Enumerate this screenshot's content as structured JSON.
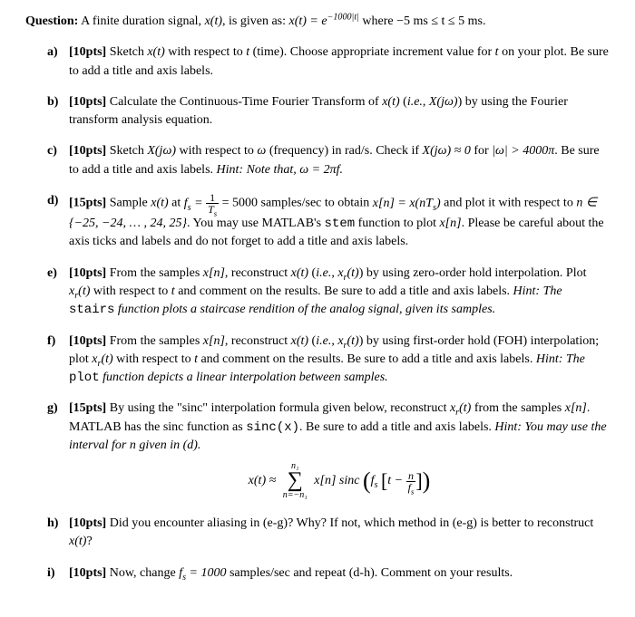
{
  "question": {
    "label": "Question:",
    "text_before": " A finite duration signal, ",
    "sig": "x(t)",
    "text_mid1": ", is given as: ",
    "eq_lhs": "x(t) = e",
    "eq_exp": "−1000|t|",
    "text_mid2": " where ",
    "range": "−5 ms ≤ t ≤ 5 ms.",
    "text_after": ""
  },
  "parts": {
    "a": {
      "label": "a)",
      "pts": "[10pts]",
      "body1": " Sketch ",
      "m1": "x(t)",
      "body2": " with respect to ",
      "m2": "t",
      "body3": " (time). Choose appropriate increment value for ",
      "m3": "t",
      "body4": " on your plot. Be sure to add a title and axis labels."
    },
    "b": {
      "label": "b)",
      "pts": "[10pts]",
      "body1": " Calculate the Continuous-Time Fourier Transform of ",
      "m1": "x(t)",
      "body2": " (",
      "m_ie": "i.e.",
      "body2b": ", ",
      "m2": "X(jω)",
      "body3": ") by using the Fourier transform analysis equation."
    },
    "c": {
      "label": "c)",
      "pts": "[10pts]",
      "body1": " Sketch ",
      "m1": "X(jω)",
      "body2": " with respect to ",
      "m2": "ω",
      "body3": " (frequency) in rad/s. Check if ",
      "m3": "X(jω) ≈ 0",
      "body4": " for ",
      "m4": "|ω| > 4000π",
      "body5": ". Be sure to add a title and axis labels. ",
      "hint_label": "Hint: Note that, ",
      "hint_math": "ω = 2πf",
      "hint_end": "."
    },
    "d": {
      "label": "d)",
      "pts": "[15pts]",
      "body1": " Sample ",
      "m1": "x(t)",
      "body2": " at ",
      "m2_lhs": "f",
      "m2_sub": "s",
      "m2_eq": " = ",
      "frac_num": "1",
      "frac_den": "T",
      "frac_den_sub": "s",
      "m2_val": " = 5000",
      "body3": " samples/sec to obtain ",
      "m3": "x[n] = x(nT",
      "m3_sub": "s",
      "m3_end": ")",
      "body4": " and plot it with respect to ",
      "m4": "n ∈ {−25, −24, … , 24, 25}",
      "body5": ". You may use MATLAB's ",
      "code1": "stem",
      "body6": " function to plot ",
      "m5": "x[n]",
      "body7": ". Please be careful about the axis ticks and labels and do not forget to add a title and axis labels."
    },
    "e": {
      "label": "e)",
      "pts": "[10pts]",
      "body1": " From the samples ",
      "m1": "x[n]",
      "body2": ", reconstruct ",
      "m2": "x(t)",
      "body3": " (",
      "m_ie": "i.e.",
      "body3b": ", ",
      "m3": "x",
      "m3_sub": "r",
      "m3_end": "(t)",
      "body4": ") by using zero-order hold interpolation. Plot ",
      "m4": "x",
      "m4_sub": "r",
      "m4_end": "(t)",
      "body5": " with respect to ",
      "m5": "t",
      "body6": " and comment on the results. Be sure to add a title and axis labels. ",
      "hint_label": "Hint: The ",
      "hint_code": "stairs",
      "hint_body": " function plots a staircase rendition of the analog signal, given its samples."
    },
    "f": {
      "label": "f)",
      "pts": "[10pts]",
      "body1": " From the samples ",
      "m1": "x[n]",
      "body2": ", reconstruct ",
      "m2": "x(t)",
      "body3": " (",
      "m_ie": "i.e.",
      "body3b": ", ",
      "m3": "x",
      "m3_sub": "r",
      "m3_end": "(t)",
      "body4": ") by using first-order hold (FOH) interpolation; plot ",
      "m4": "x",
      "m4_sub": "r",
      "m4_end": "(t)",
      "body5": " with respect to ",
      "m5": "t",
      "body6": " and comment on the results. Be sure to add a title and axis labels. ",
      "hint_label": "Hint: The ",
      "hint_code": "plot",
      "hint_body": " function depicts a linear interpolation between samples."
    },
    "g": {
      "label": "g)",
      "pts": "[15pts]",
      "body1": " By using the \"sinc\" interpolation formula given below, reconstruct ",
      "m1": "x",
      "m1_sub": "r",
      "m1_end": "(t)",
      "body2": " from the samples ",
      "m2": "x[n]",
      "body3": ". MATLAB has the sinc function as ",
      "code1": "sinc(x)",
      "body4": ". Be sure to add a title and axis labels. ",
      "hint_label": "Hint: You may use the interval for n given in (d).",
      "formula": {
        "lhs": "x(t) ≈ ",
        "sum_top": "n₁",
        "sum_bot": "n=−n₁",
        "term1": " x[n] sinc",
        "fs1": "f",
        "fs1_sub": "s",
        "inner_t": "t − ",
        "frac_num": "n",
        "frac_den": "f",
        "frac_den_sub": "s"
      }
    },
    "h": {
      "label": "h)",
      "pts": "[10pts]",
      "body1": " Did you encounter aliasing in (e-g)? Why? If not, which method in (e-g) is better to reconstruct ",
      "m1": "x(t)",
      "body2": "?"
    },
    "i": {
      "label": "i)",
      "pts": "[10pts]",
      "body1": " Now, change ",
      "m1": "f",
      "m1_sub": "s",
      "m1_val": " = 1000",
      "body2": " samples/sec and repeat (d-h). Comment on your results."
    }
  }
}
